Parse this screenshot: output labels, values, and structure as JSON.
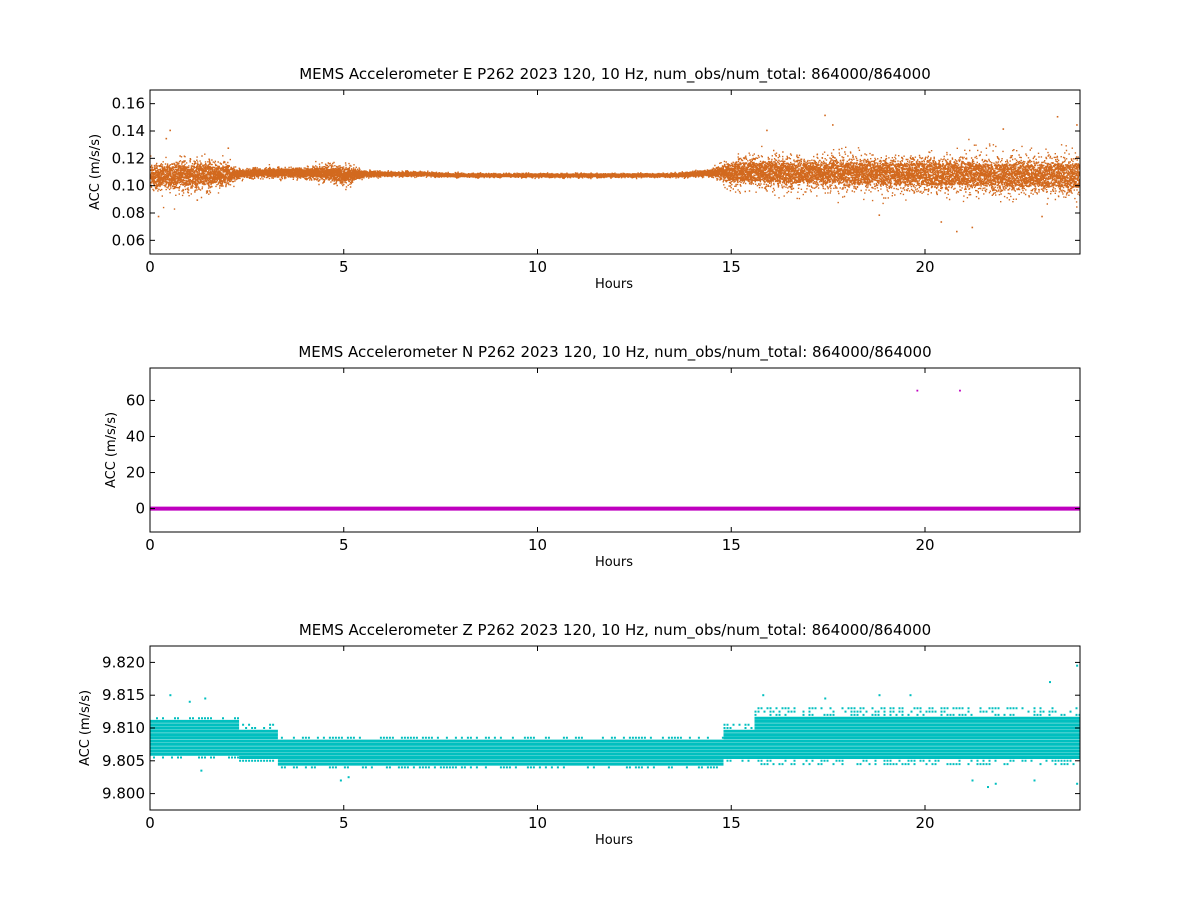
{
  "chart_data": [
    {
      "type": "scatter",
      "title": "MEMS Accelerometer E P262 2023 120, 10 Hz, num_obs/num_total: 864000/864000",
      "xlabel": "Hours",
      "ylabel": "ACC (m/s/s)",
      "xlim": [
        0,
        24
      ],
      "ylim": [
        0.05,
        0.17
      ],
      "xticks": [
        0,
        5,
        10,
        15,
        20
      ],
      "yticks": [
        0.06,
        0.08,
        0.1,
        0.12,
        0.14,
        0.16
      ],
      "ytick_labels": [
        "0.06",
        "0.08",
        "0.10",
        "0.12",
        "0.14",
        "0.16"
      ],
      "color": "#d2691e",
      "series": [
        {
          "x": [
            0,
            0.5,
            1,
            1.5,
            2,
            2.2,
            3,
            4,
            4.5,
            5,
            5.5,
            6,
            7,
            8,
            9,
            10,
            11,
            12,
            13,
            13.5,
            14,
            14.5,
            15,
            15.5,
            16,
            17,
            18,
            19,
            20,
            21,
            22,
            23,
            24
          ],
          "mean": [
            0.107,
            0.108,
            0.108,
            0.108,
            0.109,
            0.109,
            0.11,
            0.11,
            0.11,
            0.108,
            0.109,
            0.109,
            0.109,
            0.108,
            0.108,
            0.108,
            0.108,
            0.108,
            0.108,
            0.108,
            0.109,
            0.11,
            0.11,
            0.111,
            0.11,
            0.11,
            0.11,
            0.109,
            0.109,
            0.109,
            0.108,
            0.108,
            0.108
          ],
          "half_range": [
            0.013,
            0.014,
            0.014,
            0.013,
            0.01,
            0.004,
            0.004,
            0.005,
            0.007,
            0.009,
            0.003,
            0.002,
            0.002,
            0.0015,
            0.0015,
            0.0015,
            0.0015,
            0.0015,
            0.0015,
            0.0015,
            0.0025,
            0.003,
            0.012,
            0.013,
            0.014,
            0.014,
            0.015,
            0.015,
            0.016,
            0.016,
            0.016,
            0.016,
            0.017
          ]
        }
      ],
      "outliers": [
        [
          0.4,
          0.135
        ],
        [
          0.5,
          0.141
        ],
        [
          0.2,
          0.078
        ],
        [
          1.2,
          0.09
        ],
        [
          2.0,
          0.128
        ],
        [
          15.9,
          0.141
        ],
        [
          17.4,
          0.152
        ],
        [
          17.6,
          0.145
        ],
        [
          18.8,
          0.079
        ],
        [
          20.4,
          0.074
        ],
        [
          20.8,
          0.067
        ],
        [
          21.2,
          0.07
        ],
        [
          22.0,
          0.142
        ],
        [
          23.4,
          0.151
        ],
        [
          23.0,
          0.078
        ],
        [
          23.9,
          0.145
        ]
      ]
    },
    {
      "type": "scatter",
      "title": "MEMS Accelerometer N P262 2023 120, 10 Hz, num_obs/num_total: 864000/864000",
      "xlabel": "Hours",
      "ylabel": "ACC (m/s/s)",
      "xlim": [
        0,
        24
      ],
      "ylim": [
        -13,
        78
      ],
      "xticks": [
        0,
        5,
        10,
        15,
        20
      ],
      "yticks": [
        0,
        20,
        40,
        60
      ],
      "ytick_labels": [
        "0",
        "20",
        "40",
        "60"
      ],
      "color": "#bf00bf",
      "series": [
        {
          "x": [
            0,
            24
          ],
          "y": [
            0,
            0
          ]
        }
      ],
      "outliers": [
        [
          19.8,
          65.5
        ],
        [
          20.9,
          65.5
        ]
      ]
    },
    {
      "type": "scatter",
      "title": "MEMS Accelerometer Z P262 2023 120, 10 Hz, num_obs/num_total: 864000/864000",
      "xlabel": "Hours",
      "ylabel": "ACC (m/s/s)",
      "xlim": [
        0,
        24
      ],
      "ylim": [
        9.7975,
        9.8225
      ],
      "xticks": [
        0,
        5,
        10,
        15,
        20
      ],
      "yticks": [
        9.8,
        9.805,
        9.81,
        9.815,
        9.82
      ],
      "ytick_labels": [
        "9.800",
        "9.805",
        "9.810",
        "9.815",
        "9.820"
      ],
      "color": "#00bfbf",
      "levels": [
        9.8025,
        9.803,
        9.8035,
        9.804,
        9.8045,
        9.805,
        9.8055,
        9.806,
        9.8065,
        9.807,
        9.8075,
        9.808,
        9.8085,
        9.809,
        9.8095,
        9.81,
        9.8105,
        9.811,
        9.8115,
        9.812,
        9.8125,
        9.813,
        9.8135,
        9.814,
        9.8145,
        9.815
      ],
      "segments": [
        {
          "x0": 0,
          "x1": 2.3,
          "ymin": 9.8055,
          "ymax": 9.8115,
          "dense_min": 9.806,
          "dense_max": 9.811
        },
        {
          "x0": 2.3,
          "x1": 3.3,
          "ymin": 9.805,
          "ymax": 9.8105,
          "dense_min": 9.8055,
          "dense_max": 9.8095
        },
        {
          "x0": 3.3,
          "x1": 14.8,
          "ymin": 9.804,
          "ymax": 9.8085,
          "dense_min": 9.8045,
          "dense_max": 9.808
        },
        {
          "x0": 14.8,
          "x1": 15.6,
          "ymin": 9.805,
          "ymax": 9.8105,
          "dense_min": 9.8055,
          "dense_max": 9.8095
        },
        {
          "x0": 15.6,
          "x1": 24,
          "ymin": 9.8045,
          "ymax": 9.813,
          "dense_min": 9.8055,
          "dense_max": 9.8115
        }
      ],
      "outliers": [
        [
          0.5,
          9.815
        ],
        [
          1.0,
          9.814
        ],
        [
          1.4,
          9.8145
        ],
        [
          1.3,
          9.8035
        ],
        [
          4.9,
          9.802
        ],
        [
          5.1,
          9.8025
        ],
        [
          15.8,
          9.815
        ],
        [
          17.4,
          9.8145
        ],
        [
          18.8,
          9.815
        ],
        [
          19.6,
          9.815
        ],
        [
          21.2,
          9.802
        ],
        [
          21.6,
          9.801
        ],
        [
          21.8,
          9.8015
        ],
        [
          22.8,
          9.802
        ],
        [
          23.2,
          9.817
        ],
        [
          23.9,
          9.8015
        ],
        [
          23.9,
          9.8195
        ],
        [
          24.0,
          9.8185
        ]
      ]
    }
  ]
}
